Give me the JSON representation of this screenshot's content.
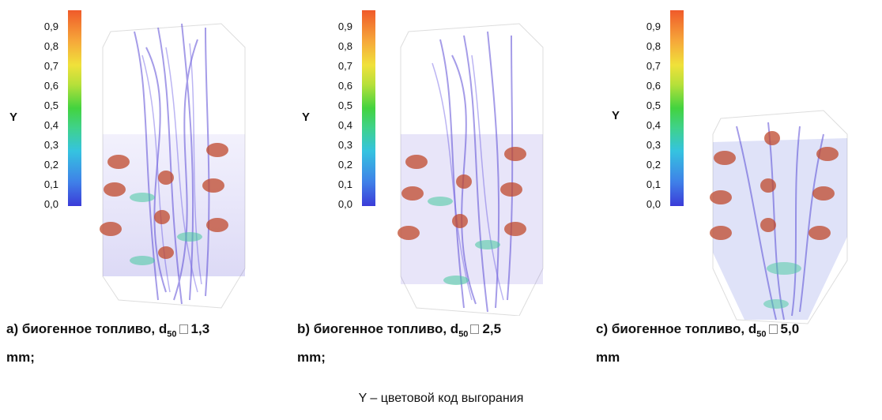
{
  "colorbar": {
    "variable": "Y",
    "ticks": [
      "0,0",
      "0,1",
      "0,2",
      "0,3",
      "0,4",
      "0,5",
      "0,6",
      "0,7",
      "0,8",
      "0,9"
    ],
    "colors_bottom_to_top": [
      "#3b3bd8",
      "#35c3e0",
      "#43d33f",
      "#f0e13a",
      "#f05a2a"
    ]
  },
  "panels": [
    {
      "caption_prefix": "a) биогенное топливо, d",
      "subscript": "50",
      "caption_value": "1,3",
      "caption_line2": "mm;"
    },
    {
      "caption_prefix": "b) биогенное топливо, d",
      "subscript": "50",
      "caption_value": "2,5",
      "caption_line2": "mm;"
    },
    {
      "caption_prefix": "c) биогенное топливо, d",
      "subscript": "50",
      "caption_value": "5,0",
      "caption_line2": "mm"
    }
  ],
  "footer": "Y  –  цветовой код выгорания"
}
